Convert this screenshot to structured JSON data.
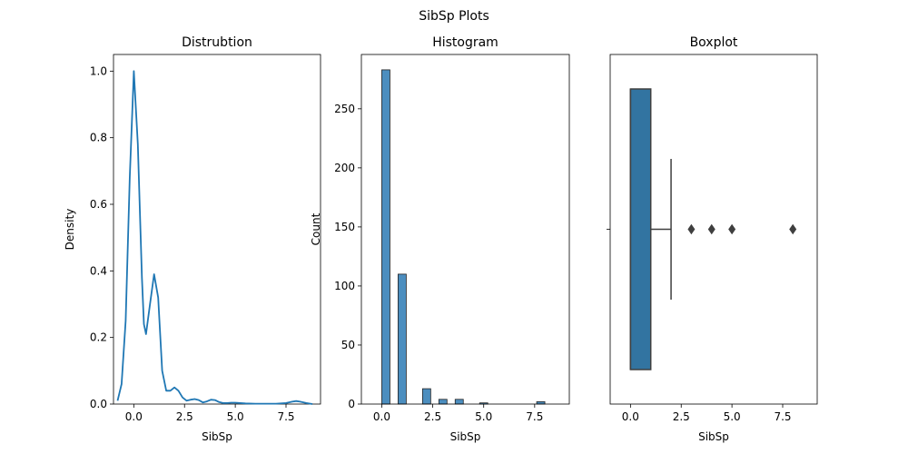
{
  "figure": {
    "suptitle": "SibSp Plots"
  },
  "chart_data": [
    {
      "type": "line",
      "title": "Distrubtion",
      "xlabel": "SibSp",
      "ylabel": "Density",
      "xlim": [
        -1.0,
        9.2
      ],
      "ylim": [
        0,
        1.05
      ],
      "xticks": [
        0.0,
        2.5,
        5.0,
        7.5
      ],
      "xtick_labels": [
        "0.0",
        "2.5",
        "5.0",
        "7.5"
      ],
      "yticks": [
        0.0,
        0.2,
        0.4,
        0.6,
        0.8,
        1.0
      ],
      "ytick_labels": [
        "0.0",
        "0.2",
        "0.4",
        "0.6",
        "0.8",
        "1.0"
      ],
      "color": "#1f77b4",
      "grid": false,
      "series": [
        {
          "x": [
            -0.8,
            -0.6,
            -0.4,
            -0.2,
            0.0,
            0.2,
            0.4,
            0.5,
            0.6,
            0.8,
            1.0,
            1.2,
            1.4,
            1.6,
            1.8,
            2.0,
            2.2,
            2.4,
            2.6,
            2.8,
            3.0,
            3.2,
            3.4,
            3.6,
            3.8,
            4.0,
            4.2,
            4.4,
            4.6,
            4.8,
            5.0,
            5.5,
            6.0,
            6.5,
            7.0,
            7.5,
            7.8,
            8.0,
            8.2,
            8.5,
            8.8
          ],
          "y": [
            0.01,
            0.06,
            0.25,
            0.68,
            1.0,
            0.78,
            0.38,
            0.24,
            0.21,
            0.3,
            0.39,
            0.32,
            0.1,
            0.04,
            0.04,
            0.05,
            0.04,
            0.02,
            0.01,
            0.013,
            0.015,
            0.012,
            0.005,
            0.008,
            0.013,
            0.012,
            0.006,
            0.003,
            0.003,
            0.004,
            0.004,
            0.002,
            0.001,
            0.001,
            0.001,
            0.003,
            0.007,
            0.009,
            0.007,
            0.003,
            0.0
          ]
        }
      ]
    },
    {
      "type": "bar",
      "title": "Histogram",
      "xlabel": "SibSp",
      "ylabel": "Count",
      "xlim": [
        -1.0,
        9.2
      ],
      "ylim": [
        0,
        296
      ],
      "xticks": [
        0.0,
        2.5,
        5.0,
        7.5
      ],
      "xtick_labels": [
        "0.0",
        "2.5",
        "5.0",
        "7.5"
      ],
      "yticks": [
        0,
        50,
        100,
        150,
        200,
        250
      ],
      "ytick_labels": [
        "0",
        "50",
        "100",
        "150",
        "200",
        "250"
      ],
      "color": "#4c8ebf",
      "edgecolor": "#222222",
      "grid": false,
      "bins": [
        {
          "x0": 0.0,
          "x1": 0.4,
          "count": 283
        },
        {
          "x0": 0.4,
          "x1": 0.8,
          "count": 0
        },
        {
          "x0": 0.8,
          "x1": 1.2,
          "count": 110
        },
        {
          "x0": 1.2,
          "x1": 1.6,
          "count": 0
        },
        {
          "x0": 1.6,
          "x1": 2.0,
          "count": 0
        },
        {
          "x0": 2.0,
          "x1": 2.4,
          "count": 13
        },
        {
          "x0": 2.8,
          "x1": 3.2,
          "count": 4
        },
        {
          "x0": 3.6,
          "x1": 4.0,
          "count": 4
        },
        {
          "x0": 4.8,
          "x1": 5.2,
          "count": 1
        },
        {
          "x0": 7.6,
          "x1": 8.0,
          "count": 2
        }
      ]
    },
    {
      "type": "box",
      "title": "Boxplot",
      "xlabel": "SibSp",
      "xlim": [
        -1.0,
        9.2
      ],
      "xticks": [
        0.0,
        2.5,
        5.0,
        7.5
      ],
      "xtick_labels": [
        "0.0",
        "2.5",
        "5.0",
        "7.5"
      ],
      "color": "#3274a1",
      "edgecolor": "#3f3f3f",
      "grid": false,
      "box": {
        "min": 0,
        "q1": 0,
        "median": 0,
        "q3": 1,
        "max": 2,
        "outliers": [
          3,
          4,
          5,
          8
        ]
      }
    }
  ]
}
